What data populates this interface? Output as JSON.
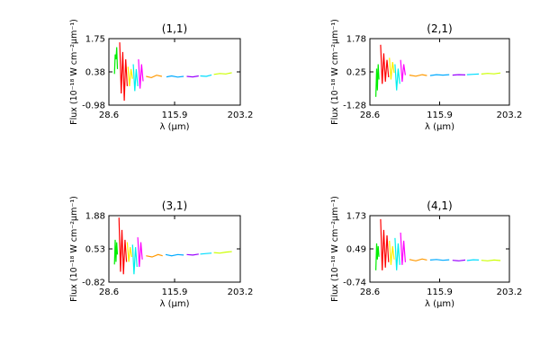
{
  "chart_data": [
    {
      "type": "line",
      "title": "(1,1)",
      "xlabel": "λ (μm)",
      "ylabel": "Flux (10⁻¹⁸ W cm⁻²μm⁻¹)",
      "xlim": [
        28.6,
        203.2
      ],
      "ylim": [
        -0.98,
        1.75
      ],
      "xticks": [
        "28.6",
        "115.9",
        "203.2"
      ],
      "yticks": [
        "-0.98",
        "0.38",
        "1.75"
      ],
      "series": [
        {
          "color": "#00ee00",
          "x": [
            36,
            37,
            38,
            39,
            40
          ],
          "y": [
            0.3,
            1.1,
            0.9,
            1.4,
            0.5
          ]
        },
        {
          "color": "#ff0000",
          "x": [
            43,
            45,
            47,
            49,
            51,
            53
          ],
          "y": [
            1.6,
            -0.5,
            1.2,
            -0.8,
            0.9,
            -0.2
          ]
        },
        {
          "color": "#ffee00",
          "x": [
            54,
            56,
            58,
            60
          ],
          "y": [
            0.6,
            -0.2,
            0.5,
            0.1
          ]
        },
        {
          "color": "#00eeee",
          "x": [
            61,
            63,
            65,
            67
          ],
          "y": [
            0.7,
            -0.4,
            0.5,
            -0.2
          ]
        },
        {
          "color": "#ff00ff",
          "x": [
            68,
            70,
            72,
            74
          ],
          "y": [
            0.9,
            -0.3,
            0.7,
            0.0
          ]
        },
        {
          "color": "#ff9900",
          "x": [
            78,
            85,
            92,
            99
          ],
          "y": [
            0.2,
            0.15,
            0.25,
            0.2
          ]
        },
        {
          "color": "#00aaff",
          "x": [
            105,
            112,
            120,
            128
          ],
          "y": [
            0.18,
            0.22,
            0.17,
            0.2
          ]
        },
        {
          "color": "#9900ff",
          "x": [
            132,
            140,
            148
          ],
          "y": [
            0.2,
            0.18,
            0.22
          ]
        },
        {
          "color": "#00ddff",
          "x": [
            150,
            158,
            165
          ],
          "y": [
            0.22,
            0.2,
            0.26
          ]
        },
        {
          "color": "#ccff00",
          "x": [
            168,
            176,
            184,
            192
          ],
          "y": [
            0.28,
            0.32,
            0.3,
            0.35
          ]
        }
      ]
    },
    {
      "type": "line",
      "title": "(2,1)",
      "xlabel": "λ (μm)",
      "ylabel": "Flux (10⁻¹⁸ W cm⁻²μm⁻¹)",
      "xlim": [
        28.6,
        203.2
      ],
      "ylim": [
        -1.28,
        1.78
      ],
      "xticks": [
        "28.6",
        "115.9",
        "203.2"
      ],
      "yticks": [
        "-1.28",
        "0.25",
        "1.78"
      ],
      "series": [
        {
          "color": "#00ee00",
          "x": [
            36,
            37,
            38,
            39,
            40
          ],
          "y": [
            -0.9,
            0.4,
            -0.6,
            0.6,
            -0.1
          ]
        },
        {
          "color": "#ff0000",
          "x": [
            42,
            44,
            46,
            48,
            50,
            52
          ],
          "y": [
            1.5,
            -0.3,
            1.1,
            -0.2,
            0.8,
            0.0
          ]
        },
        {
          "color": "#ffee00",
          "x": [
            53,
            55,
            57,
            59
          ],
          "y": [
            0.9,
            -0.1,
            0.7,
            0.2
          ]
        },
        {
          "color": "#00eeee",
          "x": [
            60,
            62,
            64,
            66
          ],
          "y": [
            0.6,
            -0.6,
            0.4,
            -0.3
          ]
        },
        {
          "color": "#ff00ff",
          "x": [
            67,
            69,
            71,
            73
          ],
          "y": [
            0.8,
            -0.2,
            0.6,
            0.1
          ]
        },
        {
          "color": "#ff9900",
          "x": [
            78,
            86,
            94,
            100
          ],
          "y": [
            0.1,
            0.05,
            0.12,
            0.08
          ]
        },
        {
          "color": "#00aaff",
          "x": [
            104,
            112,
            120,
            128
          ],
          "y": [
            0.08,
            0.12,
            0.1,
            0.12
          ]
        },
        {
          "color": "#9900ff",
          "x": [
            132,
            140,
            148
          ],
          "y": [
            0.1,
            0.12,
            0.11
          ]
        },
        {
          "color": "#00ddff",
          "x": [
            150,
            158,
            165
          ],
          "y": [
            0.12,
            0.14,
            0.15
          ]
        },
        {
          "color": "#ccff00",
          "x": [
            168,
            176,
            184,
            192
          ],
          "y": [
            0.15,
            0.18,
            0.16,
            0.2
          ]
        }
      ]
    },
    {
      "type": "line",
      "title": "(3,1)",
      "xlabel": "λ (μm)",
      "ylabel": "Flux (10⁻¹⁸ W cm⁻²μm⁻¹)",
      "xlim": [
        28.6,
        203.2
      ],
      "ylim": [
        -0.82,
        1.88
      ],
      "xticks": [
        "28.6",
        "115.9",
        "203.2"
      ],
      "yticks": [
        "-0.82",
        "0.53",
        "1.88"
      ],
      "series": [
        {
          "color": "#00ee00",
          "x": [
            36,
            37,
            38,
            39,
            40
          ],
          "y": [
            -0.1,
            0.9,
            0.0,
            0.8,
            0.3
          ]
        },
        {
          "color": "#ff0000",
          "x": [
            42,
            44,
            46,
            48,
            50,
            52
          ],
          "y": [
            1.8,
            -0.4,
            1.3,
            -0.5,
            0.9,
            0.0
          ]
        },
        {
          "color": "#ffee00",
          "x": [
            53,
            55,
            57,
            59
          ],
          "y": [
            0.8,
            0.0,
            0.6,
            0.2
          ]
        },
        {
          "color": "#00eeee",
          "x": [
            60,
            62,
            64,
            66
          ],
          "y": [
            0.7,
            -0.5,
            0.6,
            -0.2
          ]
        },
        {
          "color": "#ff00ff",
          "x": [
            67,
            69,
            71,
            73
          ],
          "y": [
            1.0,
            -0.2,
            0.8,
            0.1
          ]
        },
        {
          "color": "#ff9900",
          "x": [
            78,
            86,
            94,
            100
          ],
          "y": [
            0.25,
            0.2,
            0.3,
            0.25
          ]
        },
        {
          "color": "#00aaff",
          "x": [
            104,
            112,
            120,
            128
          ],
          "y": [
            0.3,
            0.25,
            0.3,
            0.28
          ]
        },
        {
          "color": "#9900ff",
          "x": [
            132,
            140,
            148
          ],
          "y": [
            0.3,
            0.28,
            0.32
          ]
        },
        {
          "color": "#00ddff",
          "x": [
            150,
            158,
            165
          ],
          "y": [
            0.32,
            0.34,
            0.36
          ]
        },
        {
          "color": "#ccff00",
          "x": [
            168,
            176,
            184,
            192
          ],
          "y": [
            0.38,
            0.36,
            0.4,
            0.42
          ]
        }
      ]
    },
    {
      "type": "line",
      "title": "(4,1)",
      "xlabel": "λ (μm)",
      "ylabel": "Flux (10⁻¹⁸ W cm⁻²μm⁻¹)",
      "xlim": [
        28.6,
        203.2
      ],
      "ylim": [
        -0.74,
        1.73
      ],
      "xticks": [
        "28.6",
        "115.9",
        "203.2"
      ],
      "yticks": [
        "-0.74",
        "0.49",
        "1.73"
      ],
      "series": [
        {
          "color": "#00ee00",
          "x": [
            36,
            37,
            38,
            39,
            40
          ],
          "y": [
            -0.3,
            0.7,
            0.1,
            0.6,
            0.2
          ]
        },
        {
          "color": "#ff0000",
          "x": [
            42,
            44,
            46,
            48,
            50,
            52
          ],
          "y": [
            1.6,
            -0.3,
            1.2,
            -0.2,
            1.0,
            0.0
          ]
        },
        {
          "color": "#ffee00",
          "x": [
            53,
            55,
            57,
            59
          ],
          "y": [
            0.8,
            -0.1,
            0.6,
            0.1
          ]
        },
        {
          "color": "#00eeee",
          "x": [
            60,
            62,
            64,
            66
          ],
          "y": [
            0.9,
            -0.3,
            0.7,
            -0.1
          ]
        },
        {
          "color": "#ff00ff",
          "x": [
            67,
            69,
            71,
            73
          ],
          "y": [
            1.1,
            -0.1,
            0.8,
            0.0
          ]
        },
        {
          "color": "#ff9900",
          "x": [
            78,
            86,
            94,
            100
          ],
          "y": [
            0.1,
            0.05,
            0.12,
            0.08
          ]
        },
        {
          "color": "#00aaff",
          "x": [
            104,
            112,
            120,
            128
          ],
          "y": [
            0.08,
            0.1,
            0.07,
            0.09
          ]
        },
        {
          "color": "#9900ff",
          "x": [
            132,
            140,
            148
          ],
          "y": [
            0.07,
            0.05,
            0.08
          ]
        },
        {
          "color": "#00ddff",
          "x": [
            150,
            158,
            165
          ],
          "y": [
            0.06,
            0.09,
            0.08
          ]
        },
        {
          "color": "#ccff00",
          "x": [
            168,
            176,
            184,
            192
          ],
          "y": [
            0.07,
            0.05,
            0.08,
            0.06
          ]
        }
      ]
    }
  ]
}
